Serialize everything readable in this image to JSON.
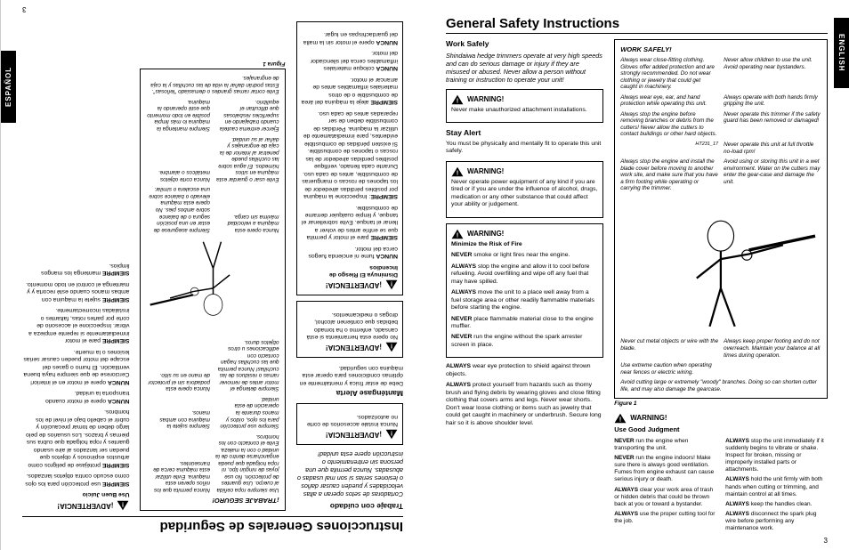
{
  "english": {
    "lang_tab": "ENGLISH",
    "title": "General Safety Instructions",
    "work_safely_h": "Work Safely",
    "work_safely_p": "Shindaiwa hedge trimmers operate at very high speeds and can do serious damage or injury if they are misused or abused. Never allow a person without training or instruction to operate your unit!",
    "warn1_h": "WARNING!",
    "warn1_p": "Never make unauthorized attachment installations.",
    "stay_alert_h": "Stay Alert",
    "stay_alert_p": "You must be physically and mentally fit to operate this unit safely.",
    "warn2_h": "WARNING!",
    "warn2_p": "Never operate power equipment of any kind if you are tired or if you are under the influence of alcohol, drugs, medication or any other substance that could affect your ability or judgement.",
    "warn3_h": "WARNING!",
    "warn3_sub": "Minimize the Risk of Fire",
    "warn3_p1": "NEVER smoke or light fires near the engine.",
    "warn3_p2": "ALWAYS stop the engine and allow it to cool before refueling. Avoid overfilling and wipe off any fuel that may have spilled.",
    "warn3_p3": "ALWAYS move the unit to a place well away from a fuel storage area or other readily flammable materials before starting the engine.",
    "warn3_p4": "NEVER place flammable material close to the engine muffler.",
    "warn3_p5": "NEVER run the engine without the spark arrester screen in place.",
    "col2_p1": "ALWAYS wear eye protection to shield against thrown objects.",
    "col2_p2": "ALWAYS protect yourself from hazards such as thorny brush and flying debris by wearing gloves and close fitting clothing that covers arms and legs. Never wear shorts. Don't wear loose clothing or items such as jewelry that could get caught in machinery or underbrush. Secure long hair so it is above shoulder level.",
    "safety_title": "WORK SAFELY!",
    "s1": "Always wear close-fitting clothing. Gloves offer added protection and are strongly recommended. Do not wear clothing or jewelry that could get caught in machinery.",
    "s2": "Never allow children to use the unit. Avoid operating near bystanders.",
    "s3": "Always wear eye, ear, and hand protection while operating this unit.",
    "s4": "Always operate with both hands firmly gripping the unit.",
    "s5": "Always stop the engine before removing branches or debris from the cutters! Never allow the cutters to contact buildings or other hard objects.",
    "s6": "Never operate this trimmer if the safety guard has been removed or damaged!",
    "s7": "Never operate this unit at full throttle no-load rpm!",
    "s8": "Always stop the engine and install the blade cover before moving to another work site, and make sure that you have a firm footing while operating or carrying the trimmer.",
    "s9": "Avoid using or storing this unit in a wet environment. Water on the cutters may enter the gear-case and damage the unit.",
    "s10": "Never cut metal objects or wire with the blade.",
    "s11": "Always keep proper footing and do not overreach. Maintain your balance at all times during operation.",
    "s12": "Use extreme caution when operating near fences or electric wiring.",
    "s13": "Avoid cutting large or extremely \"woody\" branches. Doing so can shorten cutter life, and may also damage the gearcase.",
    "fig_label": "Figure 1",
    "warn4_h": "WARNING!",
    "warn4_sub": "Use Good Judgment",
    "col3a_p1": "NEVER run the engine when transporting the unit.",
    "col3a_p2": "NEVER run the engine indoors! Make sure there is always good ventilation. Fumes from engine exhaust can cause serious injury or death.",
    "col3a_p3": "ALWAYS clear your work area of trash or hidden debris that could be thrown back at you or toward a bystander.",
    "col3a_p4": "ALWAYS use the proper cutting tool for the job.",
    "col3b_p1": "ALWAYS stop the unit immediately if it suddenly begins to vibrate or shake. Inspect for broken, missing or improperly installed parts or attachments.",
    "col3b_p2": "ALWAYS hold the unit firmly with both hands when cutting or trimming, and maintain control at all times.",
    "col3b_p3": "ALWAYS keep the handles clean.",
    "col3b_p4": "ALWAYS disconnect the spark plug wire before performing any maintenance work.",
    "page_num": "3"
  },
  "spanish": {
    "lang_tab": "ESPAÑOL",
    "title": "Instrucciones Generales de Seguridad",
    "h1": "Trabaje con cuidado",
    "p1": "Cortadoras de setos operan a altas velocidades y pueden causar daños o lesiones serias si son mal usadas o abusadas. Nunca permita que una persona sin entrenamiento o instrucción opere esta unidad!",
    "warn1_h": "¡ADVERTENCIA!",
    "warn1_p": "Nunca instale accesorios de corte no autorizados.",
    "h2": "Manténgase Alerta",
    "p2": "Debe de estar física y mentalmente en óptimas condiciones para operar esta máquina con seguridad.",
    "warn2_h": "¡ADVERTENCIA!",
    "warn2_p": "No opere esta herramienta si está cansado, enfermo o ha tomado bebidas que contienen alcohol, drogas o medicamentos.",
    "warn3_h": "¡ADVERTENCIA!",
    "warn3_sub": "Disminuya El Riesgo de Incendios",
    "warn3_p1": "NUNCA fume ni encienda fuegos cerca del motor.",
    "warn3_p2": "SIEMPRE pare el motor y permita que se enfríe antes de volver a llenar el tanque. Evite sobrellenar el tanque, y limpie cualquier derrame de combustible.",
    "warn3_p3": "SIEMPRE: Inspeccione la máquina por posibles pérdidas alrededor de los tapones de roscas o mangueras de combustible, antes de cada uso. Durante cada llenado, verifique posibles perdidas alrededor de las roscas o tapones de combustible. Si existen pérdidas de combustible evidentes, pare inmediatamente de utilizar la máquina. Pérdidas de combustible deben de ser reparadas antes de cada uso.",
    "warn3_p4": "SIEMPRE aleje la máquina del área de combustible o de otros materiales inflamables antes de arrancar el motor.",
    "warn3_p5": "NUNCA coloque materiales inflamables cerca del silenciador del motor.",
    "warn3_p6": "NUNCA opere el motor sin la malla del guardachispas en lugar.",
    "safety_title": "¡TRABAJE SEGURO!",
    "s1": "Use siempre ropa ceñida al cuerpo. Use guantes de protección. No use joyas de ningún tipo, ni ropa holgada que pueda engancharse dentro de la unidad o con la maleza. Evite el contacto con los hombros.",
    "s2": "Nunca permita que los niños operen esta máquina. Evite utilizar esta máquina cerca de transeúntes.",
    "s3": "Siempre use protección para los ojos, oídos y manos durante la operación de esta unidad.",
    "s4": "Siempre sujete la máquina con ambas manos.",
    "s5": "Siempre detenga el motor antes de remover ramas o residuos de las cuchillas! Nunca permita que las cuchillas hagan contacto con edificaciones u otros objetos duros.",
    "s6": "Nunca opere esta podadora sin el protector de mano en su sitio.",
    "s7": "Nunca opere esta máquina a velocidad máxima sin carga.",
    "s8": "Siempre asegurese de estar en una posición segura o de balance sobre ambos pies. No opere esta máquina elevado o balance sobre una escalera o similar.",
    "s9": "Evite usar o guardar esta máquina en sitios húmedos. El agua sobre las cuchillas puede penetrar al interior de la caja de engranajes y dañar al su unidad.",
    "s10": "Nunca corte objetos metálicos o alambre.",
    "s11": "Ejercer extrema cautela cuando trabajando en superficies resbalosas que dificultan el equilibrio.",
    "s12": "Siempre mantenga la máquina lo más limpia posible en todo momento que esté operando la máquina.",
    "s13": "Evite cortar ramas grandes o demasiado \"leñosas\". Estas podrán dañar la vida de las cuchillas y la caja de engranajes.",
    "fig_label": "Figura 1",
    "warn4_h": "¡ADVERTENCIA!",
    "warn4_sub": "Use Buen Juicio",
    "col3_p1": "SIEMPRE use protección para los ojos como escudo contra objetos lanzados.",
    "col3_p2": "SIEMPRE protéjase de peligros como arbustos espinosos y objetos que puedan ser lanzados al aire usando guantes y ropa holgada que cubra sus piernas y brazos. Los usuarios de pelo largo deben de tomar precaución y cubrir el cabello bajo el nivel de los hombros.",
    "col3_p3": "NUNCA opere el motor cuando transporta la unidad.",
    "col3_p4": "NUNCA opere el motor en el interior! Cerciorese de que siempre haya buena ventilación. El humo o gases del escape del motor pueden causar serias lesiones o la muerte.",
    "col3_p5": "SIEMPRE pare el motor inmediatamente si repente empieza a vibrar. Inspeccione el accesorio de corte por partes rotas, faltantes o instaladas incorrectamente.",
    "col3_p6": "SIEMPRE sujete la máquina con ambas manos cuando esté recorta y y mantenga el control en todo momento.",
    "col3_p7": "SIEMPRE mantenga los mangos limpios.",
    "page_num": "3"
  }
}
